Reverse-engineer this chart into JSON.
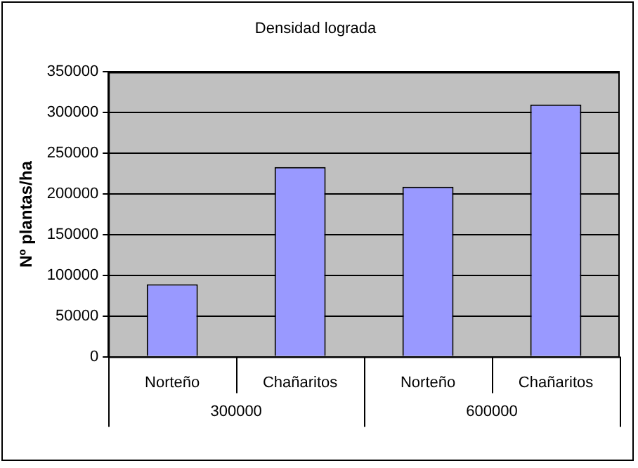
{
  "chart_data": {
    "type": "bar",
    "title": "Densidad lograda",
    "ylabel": "Nº plantas/ha",
    "categories": [
      "Norteño",
      "Chañaritos",
      "Norteño",
      "Chañaritos"
    ],
    "values": [
      89000,
      233000,
      209000,
      310000
    ],
    "color": "#9999ff",
    "ylim": [
      0,
      350000
    ],
    "yticks": [
      0,
      50000,
      100000,
      150000,
      200000,
      250000,
      300000,
      350000
    ],
    "grid": "y",
    "legend": false,
    "annotations": [
      "300000",
      "600000"
    ]
  }
}
